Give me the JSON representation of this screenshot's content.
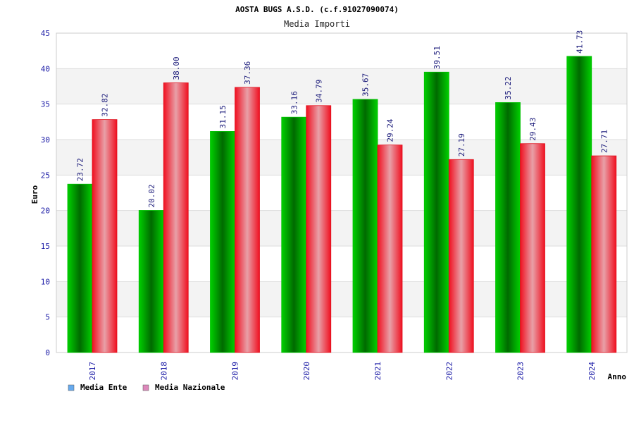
{
  "chart_data": {
    "type": "bar",
    "title": "AOSTA BUGS A.S.D. (c.f.91027090074)",
    "subtitle": "Media Importi",
    "xlabel": "Anno",
    "ylabel": "Euro",
    "ylim": [
      0,
      45
    ],
    "yticks": [
      0,
      5,
      10,
      15,
      20,
      25,
      30,
      35,
      40,
      45
    ],
    "grid": true,
    "legend_position": "bottom-left",
    "categories": [
      "2017",
      "2018",
      "2019",
      "2020",
      "2021",
      "2022",
      "2023",
      "2024"
    ],
    "series": [
      {
        "name": "Media Ente",
        "values": [
          23.72,
          20.02,
          31.15,
          33.16,
          35.67,
          39.51,
          35.22,
          41.73
        ],
        "labels": [
          "23.72",
          "20.02",
          "31.15",
          "33.16",
          "35.67",
          "39.51",
          "35.22",
          "41.73"
        ],
        "color": "#00b000",
        "legend_color": "#66aaee"
      },
      {
        "name": "Media Nazionale",
        "values": [
          32.82,
          38.0,
          37.36,
          34.79,
          29.24,
          27.19,
          29.43,
          27.71
        ],
        "labels": [
          "32.82",
          "38.00",
          "37.36",
          "34.79",
          "29.24",
          "27.19",
          "29.43",
          "27.71"
        ],
        "color": "#ee1122",
        "legend_color": "#dd88bb"
      }
    ]
  }
}
